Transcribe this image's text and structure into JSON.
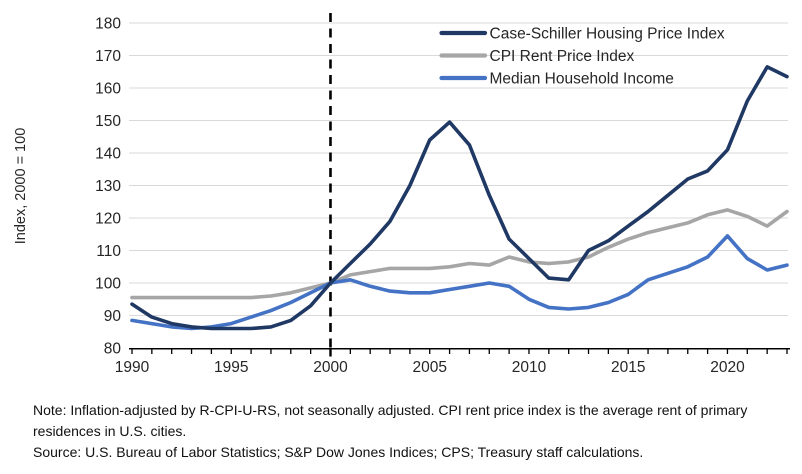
{
  "figure": {
    "note": "Note: Inflation-adjusted by R-CPI-U-RS, not seasonally adjusted. CPI rent price index is the average rent of primary residences in U.S. cities.",
    "source": "Source: U.S. Bureau of Labor Statistics; S&P Dow Jones Indices; CPS; Treasury staff calculations."
  },
  "chart_data": {
    "type": "line",
    "x": [
      1990,
      1991,
      1992,
      1993,
      1994,
      1995,
      1996,
      1997,
      1998,
      1999,
      2000,
      2001,
      2002,
      2003,
      2004,
      2005,
      2006,
      2007,
      2008,
      2009,
      2010,
      2011,
      2012,
      2013,
      2014,
      2015,
      2016,
      2017,
      2018,
      2019,
      2020,
      2021,
      2022,
      2023
    ],
    "series": [
      {
        "name": "Case-Schiller Housing Price Index",
        "color": "#1f3864",
        "values": [
          93.5,
          89.5,
          87.5,
          86.5,
          86,
          86,
          86,
          86.5,
          88.5,
          93,
          100,
          106,
          112,
          119,
          130,
          144,
          149.5,
          142.5,
          127,
          113.5,
          107.5,
          101.5,
          101,
          110,
          113,
          117.5,
          122,
          127,
          132,
          134.5,
          141,
          156,
          166.5,
          163.5
        ]
      },
      {
        "name": "CPI Rent Price Index",
        "color": "#a6a6a6",
        "values": [
          95.5,
          95.5,
          95.5,
          95.5,
          95.5,
          95.5,
          95.5,
          96,
          97,
          98.5,
          100,
          102.5,
          103.5,
          104.5,
          104.5,
          104.5,
          105,
          106,
          105.5,
          108,
          106.5,
          106,
          106.5,
          108,
          111,
          113.5,
          115.5,
          117,
          118.5,
          121,
          122.5,
          120.5,
          117.5,
          122
        ]
      },
      {
        "name": "Median Household Income",
        "color": "#4472c4",
        "values": [
          88.5,
          87.5,
          86.5,
          86,
          86.5,
          87.5,
          89.5,
          91.5,
          94,
          97,
          100,
          101,
          99,
          97.5,
          97,
          97,
          98,
          99,
          100,
          99,
          95,
          92.5,
          92,
          92.5,
          94,
          96.5,
          101,
          103,
          105,
          108,
          114.5,
          107.5,
          104,
          105.5
        ]
      }
    ],
    "title": "",
    "xlabel": "",
    "ylabel": "Index, 2000 = 100",
    "ylim": [
      80,
      180
    ],
    "ytick_step": 10,
    "xlim": [
      1990,
      2023
    ],
    "xtick_labels": [
      1990,
      1995,
      2000,
      2005,
      2010,
      2015,
      2020
    ],
    "reference_line_x": 2000,
    "grid": "horizontal",
    "gridline_color": "#d9d9d9",
    "axis_color": "#000000",
    "text_color": "#262626",
    "legend_position": "top-right"
  }
}
